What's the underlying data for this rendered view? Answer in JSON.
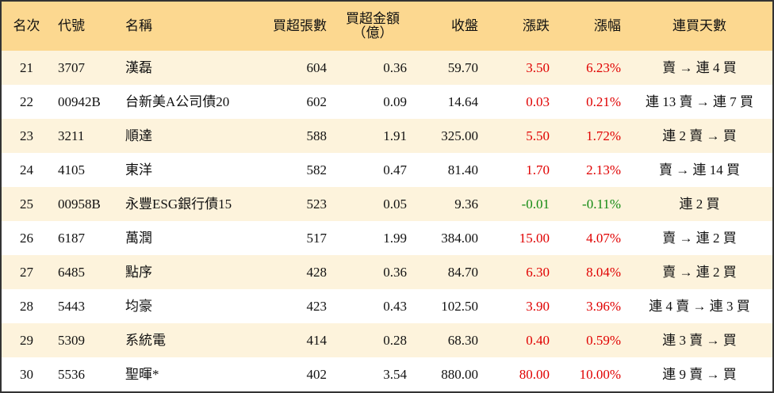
{
  "table": {
    "headers": [
      "名次",
      "代號",
      "名稱",
      "買超張數",
      "買超金額\n（億）",
      "收盤",
      "漲跌",
      "漲幅",
      "連買天數"
    ],
    "rows": [
      [
        "21",
        "3707",
        "漢磊",
        "604",
        "0.36",
        "59.70",
        "3.50",
        "6.23%",
        "賣 → 連 4 買"
      ],
      [
        "22",
        "00942B",
        "台新美A公司債20",
        "602",
        "0.09",
        "14.64",
        "0.03",
        "0.21%",
        "連 13 賣 → 連 7 買"
      ],
      [
        "23",
        "3211",
        "順達",
        "588",
        "1.91",
        "325.00",
        "5.50",
        "1.72%",
        "連 2 賣 → 買"
      ],
      [
        "24",
        "4105",
        "東洋",
        "582",
        "0.47",
        "81.40",
        "1.70",
        "2.13%",
        "賣 → 連 14 買"
      ],
      [
        "25",
        "00958B",
        "永豐ESG銀行債15",
        "523",
        "0.05",
        "9.36",
        "-0.01",
        "-0.11%",
        "連 2 買"
      ],
      [
        "26",
        "6187",
        "萬潤",
        "517",
        "1.99",
        "384.00",
        "15.00",
        "4.07%",
        "賣 → 連 2 買"
      ],
      [
        "27",
        "6485",
        "點序",
        "428",
        "0.36",
        "84.70",
        "6.30",
        "8.04%",
        "賣 → 連 2 買"
      ],
      [
        "28",
        "5443",
        "均豪",
        "423",
        "0.43",
        "102.50",
        "3.90",
        "3.96%",
        "連 4 賣 → 連 3 買"
      ],
      [
        "29",
        "5309",
        "系統電",
        "414",
        "0.28",
        "68.30",
        "0.40",
        "0.59%",
        "連 3 賣 → 買"
      ],
      [
        "30",
        "5536",
        "聖暉*",
        "402",
        "3.54",
        "880.00",
        "80.00",
        "10.00%",
        "連 9 賣 → 買"
      ]
    ]
  }
}
